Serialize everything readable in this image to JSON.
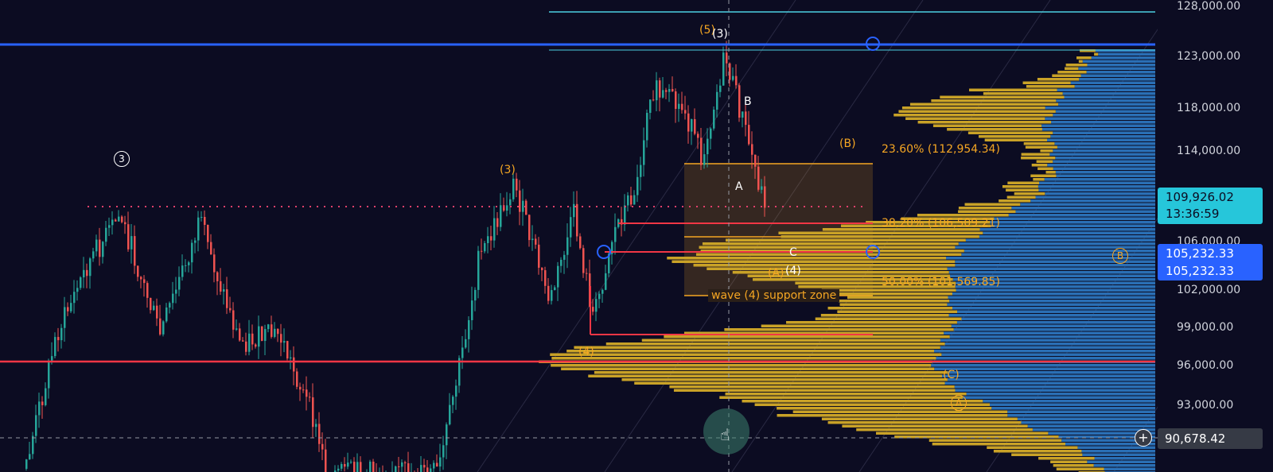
{
  "price_axis": {
    "ticks": [
      "128,000.00",
      "123,000.00",
      "118,000.00",
      "114,000.00",
      "106,000.00",
      "102,000.00",
      "99,000.00",
      "96,000.00",
      "93,000.00"
    ],
    "scale": "log",
    "current_price": "109,926.02",
    "countdown": "13:36:59",
    "line_tag_1": "105,232.33",
    "line_tag_2": "105,232.33",
    "crosshair_price": "90,678.42",
    "add_icon": "plus-circle-icon"
  },
  "fib_levels": [
    {
      "label": "23.60% (112,954.34)"
    },
    {
      "label": "38.20% (106,509.21)"
    },
    {
      "label": "50.00% (101,569.85)"
    }
  ],
  "zone_label": "wave (4) support zone",
  "wave_labels": {
    "w5": "(5)",
    "w3_top": "(3)",
    "B": "B",
    "A": "A",
    "C": "C",
    "wB_paren": "(B)",
    "wA_paren": "(A)",
    "w4_paren": "(4)",
    "w3_mid": "(3)",
    "w4_low": "(4)",
    "circ3": "3",
    "circB": "B",
    "circC": "(C)",
    "circA": "A"
  },
  "colors": {
    "background": "#0c0c22",
    "up": "#26a69a",
    "down": "#ef5350",
    "fib": "#f5a623",
    "blue_line": "#2962ff",
    "cyan_line": "#4dd0e1",
    "red_line": "#f23645",
    "profile_gold": "#c9a227",
    "profile_blue": "#2a6fb5"
  }
}
